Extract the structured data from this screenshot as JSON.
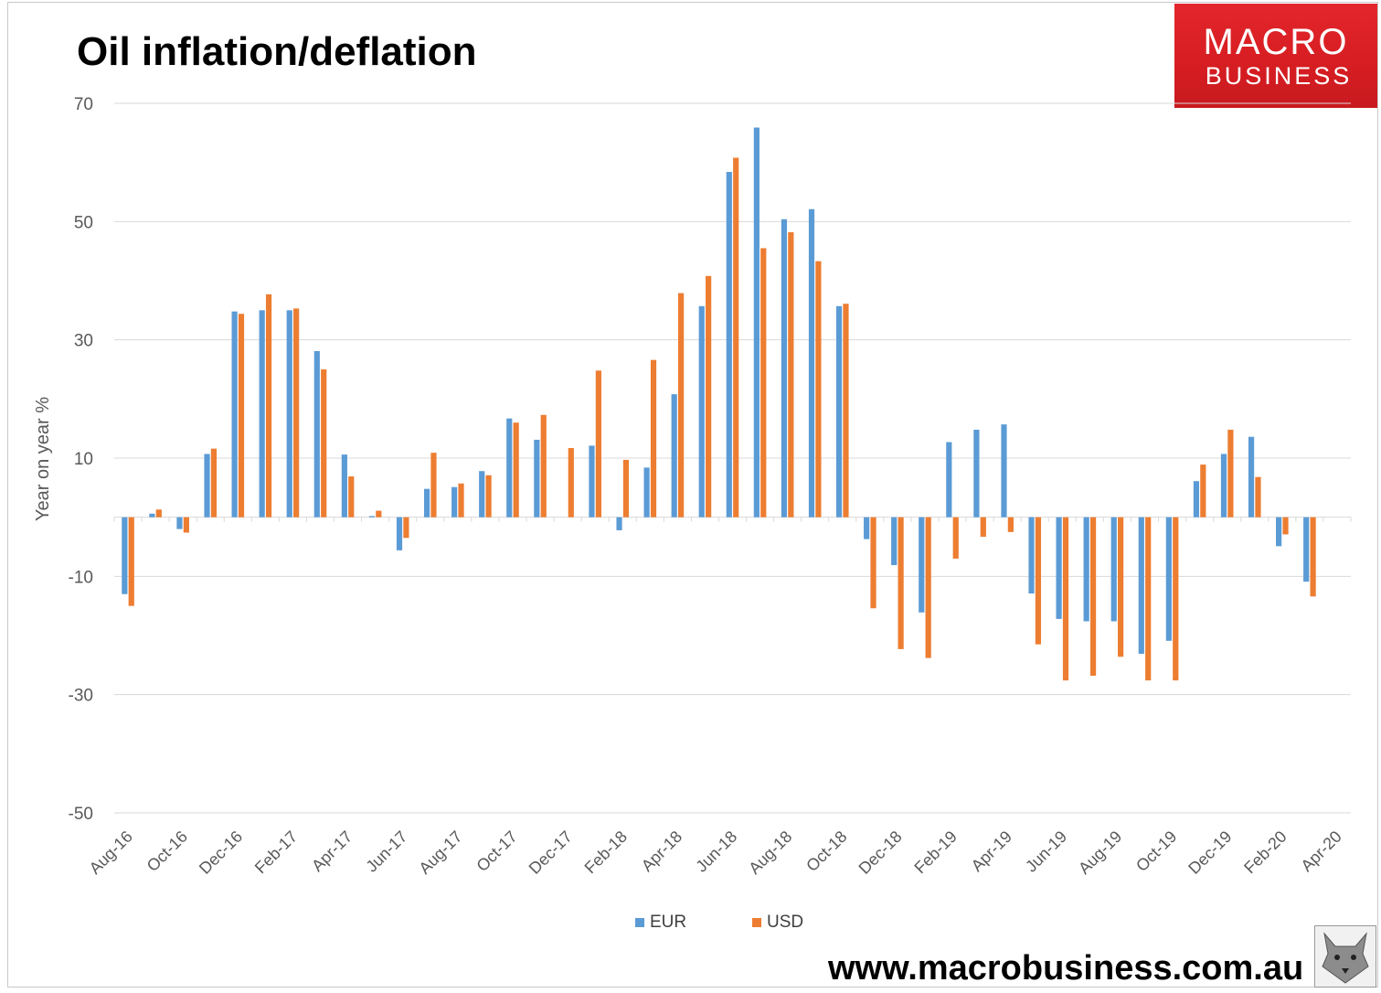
{
  "title": "Oil inflation/deflation",
  "brand": {
    "line1": "MACRO",
    "line2": "BUSINESS"
  },
  "website": "www.macrobusiness.com.au",
  "colors": {
    "eur": "#5b9bd5",
    "usd": "#ed7d31",
    "grid": "#d9d9d9",
    "axis_text": "#595959"
  },
  "chart_data": {
    "type": "bar",
    "title": "Oil inflation/deflation",
    "xlabel": "",
    "ylabel": "Year on year %",
    "ylim": [
      -50,
      70
    ],
    "yticks": [
      70,
      50,
      30,
      10,
      -10,
      -30,
      -50
    ],
    "grid": true,
    "legend_position": "bottom",
    "categories": [
      "Aug-16",
      "Sep-16",
      "Oct-16",
      "Nov-16",
      "Dec-16",
      "Jan-17",
      "Feb-17",
      "Mar-17",
      "Apr-17",
      "May-17",
      "Jun-17",
      "Jul-17",
      "Aug-17",
      "Sep-17",
      "Oct-17",
      "Nov-17",
      "Dec-17",
      "Jan-18",
      "Feb-18",
      "Mar-18",
      "Apr-18",
      "May-18",
      "Jun-18",
      "Jul-18",
      "Aug-18",
      "Sep-18",
      "Oct-18",
      "Nov-18",
      "Dec-18",
      "Jan-19",
      "Feb-19",
      "Mar-19",
      "Apr-19",
      "May-19",
      "Jun-19",
      "Jul-19",
      "Aug-19",
      "Sep-19",
      "Oct-19",
      "Nov-19",
      "Dec-19",
      "Jan-20",
      "Feb-20",
      "Mar-20",
      "Apr-20"
    ],
    "tick_labels": [
      "Aug-16",
      "Oct-16",
      "Dec-16",
      "Feb-17",
      "Apr-17",
      "Jun-17",
      "Aug-17",
      "Oct-17",
      "Dec-17",
      "Feb-18",
      "Apr-18",
      "Jun-18",
      "Aug-18",
      "Oct-18",
      "Dec-18",
      "Feb-19",
      "Apr-19",
      "Jun-19",
      "Aug-19",
      "Oct-19",
      "Dec-19",
      "Feb-20",
      "Apr-20"
    ],
    "series": [
      {
        "name": "EUR",
        "values": [
          -13.0,
          0.6,
          -2.0,
          10.7,
          34.8,
          35.0,
          35.0,
          28.1,
          10.6,
          0.2,
          -5.6,
          4.8,
          5.1,
          7.8,
          16.7,
          13.1,
          0.0,
          12.1,
          -2.2,
          8.4,
          20.8,
          35.7,
          58.4,
          65.9,
          50.4,
          52.1,
          35.7,
          -3.7,
          -8.1,
          -16.1,
          12.7,
          14.8,
          15.7,
          -12.9,
          -17.2,
          -17.6,
          -17.6,
          -23.1,
          -20.9,
          6.1,
          10.7,
          13.6,
          -4.9,
          -10.9,
          0.0
        ]
      },
      {
        "name": "USD",
        "values": [
          -15.0,
          1.3,
          -2.6,
          11.6,
          34.4,
          37.7,
          35.3,
          25.0,
          6.9,
          1.1,
          -3.5,
          10.9,
          5.7,
          7.1,
          16.0,
          17.3,
          11.7,
          24.8,
          9.7,
          26.6,
          37.9,
          40.8,
          60.8,
          45.5,
          48.2,
          43.3,
          36.1,
          -15.4,
          -22.3,
          -23.8,
          -7.0,
          -3.3,
          -2.5,
          -21.5,
          -27.6,
          -26.8,
          -23.6,
          -27.6,
          -27.6,
          8.9,
          14.8,
          6.8,
          -2.9,
          -13.4,
          0.0
        ]
      }
    ]
  }
}
